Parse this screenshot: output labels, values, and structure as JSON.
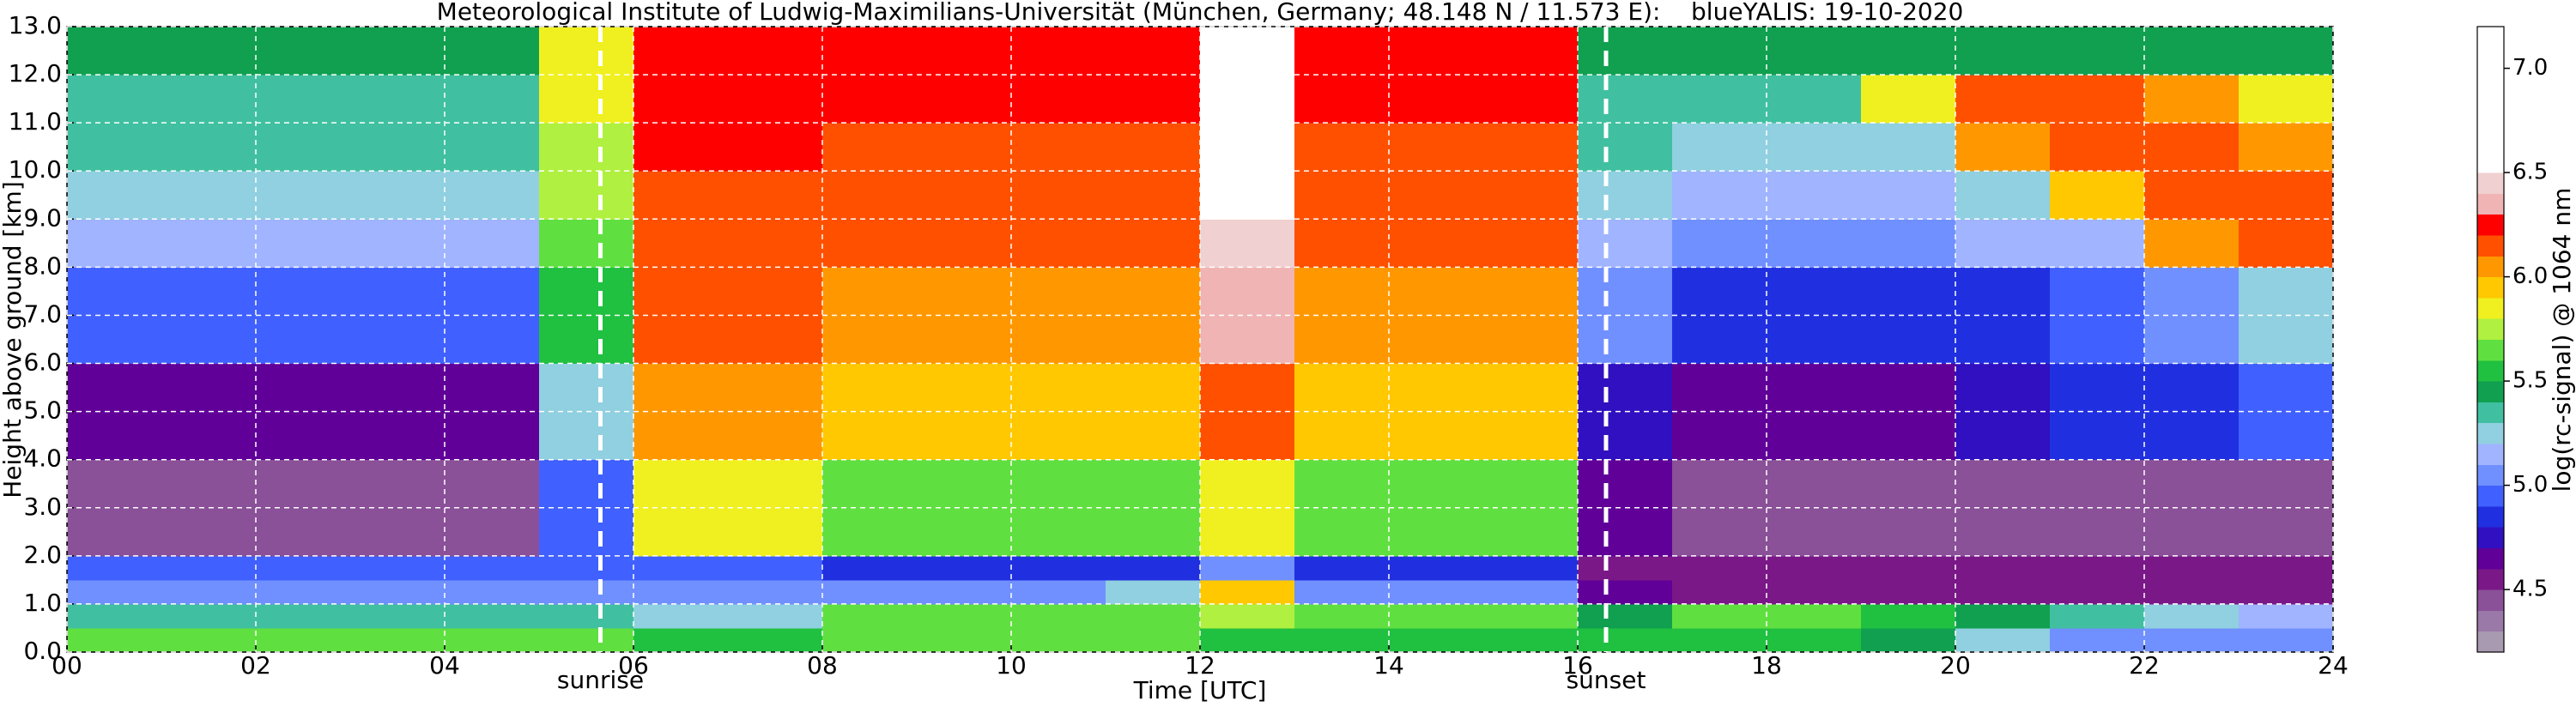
{
  "chart_data": {
    "type": "heatmap",
    "title": "Meteorological Institute of Ludwig-Maximilians-Universität (München, Germany; 48.148 N / 11.573 E):    blueYALIS: 19-10-2020",
    "x_label": "Time [UTC]",
    "y_label": "Height above ground [km]",
    "xlim": [
      0,
      24
    ],
    "ylim": [
      0,
      13
    ],
    "xticks": [
      {
        "value": 0,
        "label": "00"
      },
      {
        "value": 2,
        "label": "02"
      },
      {
        "value": 4,
        "label": "04"
      },
      {
        "value": 6,
        "label": "06"
      },
      {
        "value": 8,
        "label": "08"
      },
      {
        "value": 10,
        "label": "10"
      },
      {
        "value": 12,
        "label": "12"
      },
      {
        "value": 14,
        "label": "14"
      },
      {
        "value": 16,
        "label": "16"
      },
      {
        "value": 18,
        "label": "18"
      },
      {
        "value": 20,
        "label": "20"
      },
      {
        "value": 22,
        "label": "22"
      },
      {
        "value": 24,
        "label": "24"
      }
    ],
    "yticks": [
      {
        "value": 0,
        "label": "0.0"
      },
      {
        "value": 1,
        "label": "1.0"
      },
      {
        "value": 2,
        "label": "2.0"
      },
      {
        "value": 3,
        "label": "3.0"
      },
      {
        "value": 4,
        "label": "4.0"
      },
      {
        "value": 5,
        "label": "5.0"
      },
      {
        "value": 6,
        "label": "6.0"
      },
      {
        "value": 7,
        "label": "7.0"
      },
      {
        "value": 8,
        "label": "8.0"
      },
      {
        "value": 9,
        "label": "9.0"
      },
      {
        "value": 10,
        "label": "10.0"
      },
      {
        "value": 11,
        "label": "11.0"
      },
      {
        "value": 12,
        "label": "12.0"
      },
      {
        "value": 13,
        "label": "13.0"
      }
    ],
    "grid": true,
    "x_edges": [
      0,
      1,
      2,
      3,
      4,
      5,
      6,
      7,
      8,
      9,
      10,
      11,
      12,
      13,
      14,
      15,
      16,
      17,
      18,
      19,
      20,
      21,
      22,
      23,
      24
    ],
    "y_edges": [
      0,
      0.5,
      1,
      1.5,
      2,
      4,
      6,
      8,
      9,
      10,
      11,
      12,
      13
    ],
    "z": [
      [
        5.6,
        5.6,
        5.6,
        5.6,
        5.6,
        5.6,
        5.5,
        5.5,
        5.6,
        5.6,
        5.6,
        5.6,
        5.5,
        5.5,
        5.5,
        5.5,
        5.5,
        5.5,
        5.5,
        5.4,
        5.2,
        5.0,
        5.0,
        5.0
      ],
      [
        5.3,
        5.3,
        5.3,
        5.3,
        5.3,
        5.3,
        5.2,
        5.2,
        5.6,
        5.6,
        5.6,
        5.6,
        5.7,
        5.6,
        5.6,
        5.6,
        5.4,
        5.6,
        5.6,
        5.5,
        5.4,
        5.3,
        5.2,
        5.1
      ],
      [
        5.0,
        5.0,
        5.0,
        5.0,
        5.0,
        5.0,
        5.0,
        5.0,
        5.0,
        5.0,
        5.0,
        5.2,
        5.9,
        5.0,
        5.0,
        5.0,
        4.6,
        4.5,
        4.5,
        4.5,
        4.5,
        4.5,
        4.5,
        4.5
      ],
      [
        4.9,
        4.9,
        4.9,
        4.9,
        4.9,
        4.9,
        4.9,
        4.9,
        4.8,
        4.8,
        4.8,
        4.8,
        5.0,
        4.8,
        4.8,
        4.8,
        4.5,
        4.5,
        4.5,
        4.5,
        4.5,
        4.5,
        4.5,
        4.5
      ],
      [
        4.4,
        4.4,
        4.4,
        4.4,
        4.4,
        4.9,
        5.8,
        5.8,
        5.6,
        5.6,
        5.6,
        5.6,
        5.8,
        5.6,
        5.6,
        5.6,
        4.6,
        4.4,
        4.4,
        4.4,
        4.4,
        4.4,
        4.4,
        4.4
      ],
      [
        4.6,
        4.6,
        4.6,
        4.6,
        4.6,
        5.2,
        6.0,
        6.0,
        5.9,
        5.9,
        5.9,
        5.9,
        6.1,
        5.9,
        5.9,
        5.9,
        4.7,
        4.6,
        4.6,
        4.6,
        4.7,
        4.8,
        4.8,
        4.9
      ],
      [
        4.9,
        4.9,
        4.9,
        4.9,
        4.9,
        5.5,
        6.1,
        6.1,
        6.0,
        6.0,
        6.0,
        6.0,
        6.3,
        6.0,
        6.0,
        6.0,
        5.0,
        4.8,
        4.8,
        4.8,
        4.8,
        4.9,
        5.0,
        5.2
      ],
      [
        5.1,
        5.1,
        5.1,
        5.1,
        5.1,
        5.6,
        6.1,
        6.1,
        6.1,
        6.1,
        6.1,
        6.1,
        6.4,
        6.1,
        6.1,
        6.1,
        5.1,
        5.0,
        5.0,
        5.0,
        5.1,
        5.1,
        6.0,
        6.1
      ],
      [
        5.2,
        5.2,
        5.2,
        5.2,
        5.2,
        5.7,
        6.1,
        6.1,
        6.1,
        6.1,
        6.1,
        6.1,
        6.5,
        6.1,
        6.1,
        6.1,
        5.2,
        5.1,
        5.1,
        5.1,
        5.2,
        5.9,
        6.1,
        6.1
      ],
      [
        5.3,
        5.3,
        5.3,
        5.3,
        5.3,
        5.7,
        6.2,
        6.2,
        6.1,
        6.1,
        6.1,
        6.1,
        6.5,
        6.1,
        6.1,
        6.1,
        5.3,
        5.2,
        5.2,
        5.2,
        6.0,
        6.1,
        6.1,
        6.0
      ],
      [
        5.3,
        5.3,
        5.3,
        5.3,
        5.3,
        5.8,
        6.2,
        6.2,
        6.2,
        6.2,
        6.2,
        6.2,
        6.6,
        6.2,
        6.2,
        6.2,
        5.3,
        5.3,
        5.3,
        5.8,
        6.1,
        6.1,
        6.0,
        5.8
      ],
      [
        5.4,
        5.4,
        5.4,
        5.4,
        5.4,
        5.8,
        6.2,
        6.2,
        6.2,
        6.2,
        6.2,
        6.2,
        6.6,
        6.2,
        6.2,
        6.2,
        5.4,
        5.4,
        5.4,
        5.4,
        5.4,
        5.4,
        5.4,
        5.4
      ]
    ],
    "annotations": [
      {
        "x": 5.65,
        "label": "sunrise"
      },
      {
        "x": 16.3,
        "label": "sunset"
      }
    ],
    "colorbar": {
      "label": "log(rc-signal) @ 1064 nm",
      "clim": [
        4.2,
        7.2
      ],
      "ticks": [
        {
          "value": 4.5,
          "label": "4.5"
        },
        {
          "value": 5.0,
          "label": "5.0"
        },
        {
          "value": 5.5,
          "label": "5.5"
        },
        {
          "value": 6.0,
          "label": "6.0"
        },
        {
          "value": 6.5,
          "label": "6.5"
        },
        {
          "value": 7.0,
          "label": "7.0"
        }
      ],
      "colors": [
        "#a89ab0",
        "#9a78a8",
        "#8a5098",
        "#7a1888",
        "#600098",
        "#3010c0",
        "#2030e0",
        "#4060ff",
        "#7090ff",
        "#a0b4ff",
        "#90d0e0",
        "#40c0a0",
        "#10a050",
        "#20c040",
        "#60e040",
        "#b0f040",
        "#f0f020",
        "#ffc800",
        "#ff9800",
        "#ff5000",
        "#ff0000",
        "#f0b4b4",
        "#f0d0d0",
        "#ffffff",
        "#ffffff",
        "#ffffff",
        "#ffffff",
        "#ffffff",
        "#ffffff",
        "#ffffff"
      ]
    }
  }
}
